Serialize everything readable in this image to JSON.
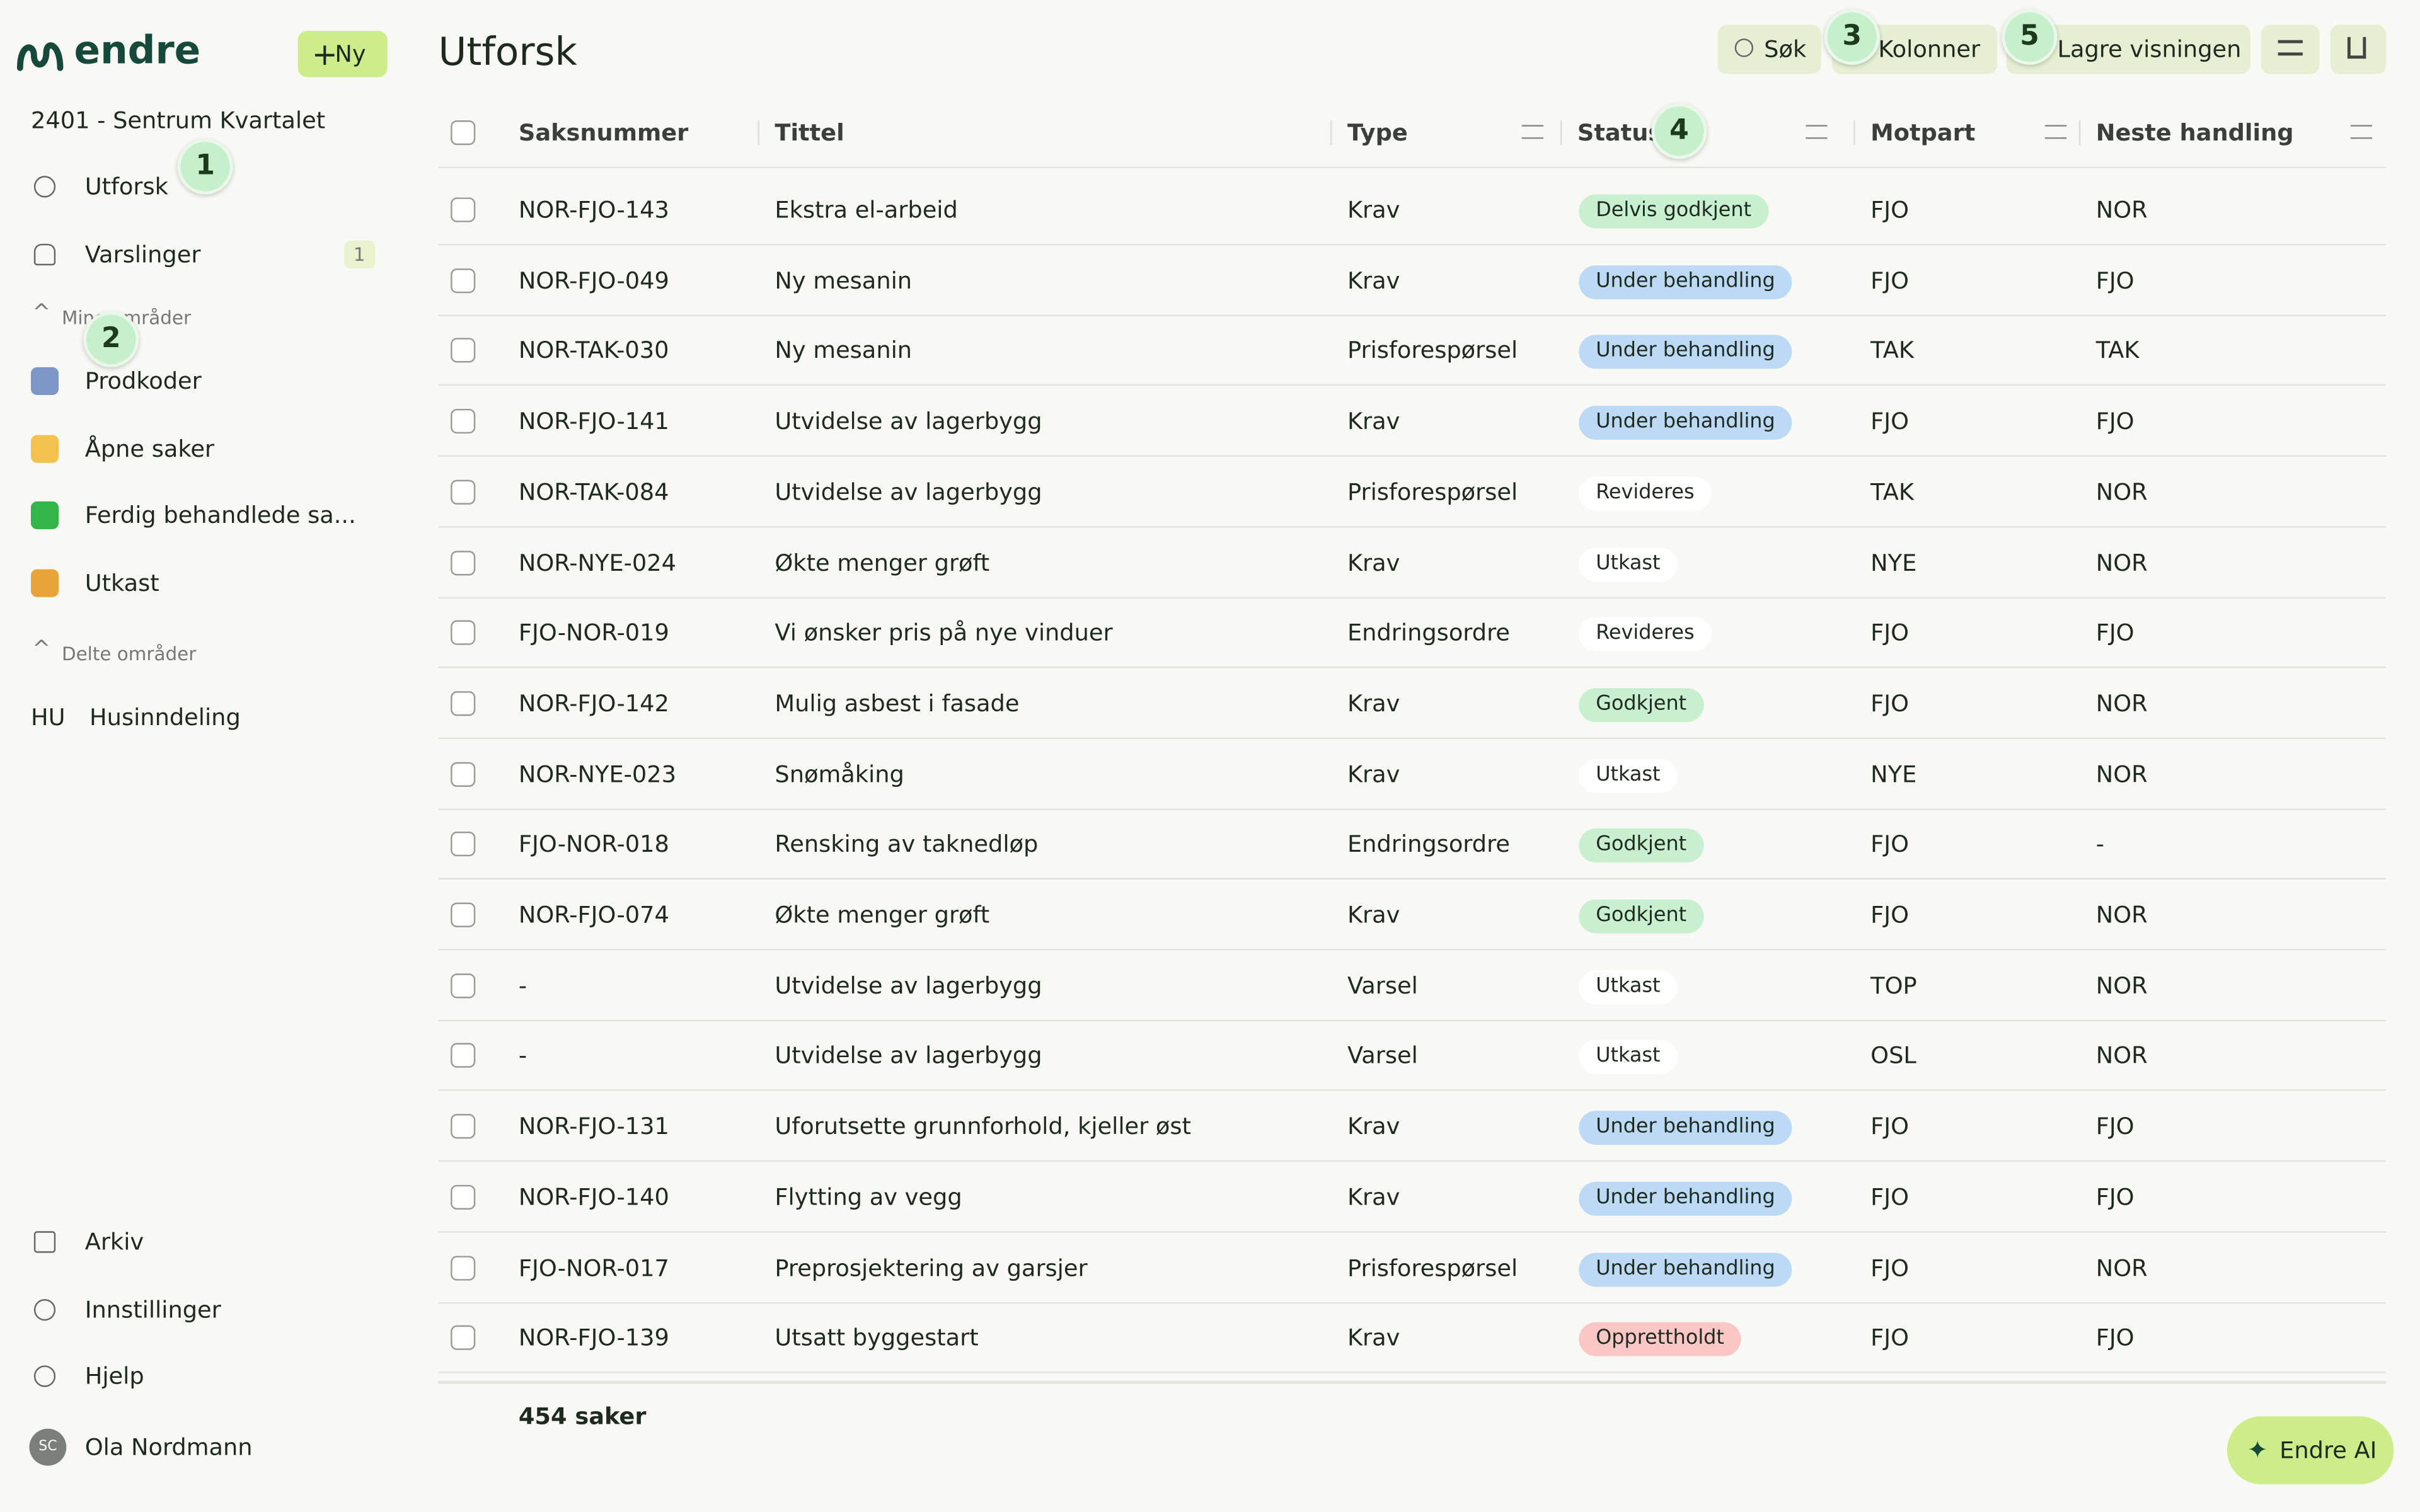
{
  "sidebar": {
    "logo": "endre",
    "new_button": "Ny",
    "project": "2401 - Sentrum Kvartalet",
    "nav": [
      {
        "label": "Utforsk"
      },
      {
        "label": "Varslinger",
        "badge": "1"
      }
    ],
    "my_areas": {
      "title": "Mine områder",
      "items": [
        "Prodkoder",
        "Åpne saker",
        "Ferdig behandlede sa...",
        "Utkast"
      ]
    },
    "shared_areas": {
      "title": "Delte områder",
      "items": [
        {
          "icon": "HU",
          "label": "Husinndeling"
        }
      ]
    },
    "bottom": [
      "Arkiv",
      "Innstillinger",
      "Hjelp"
    ],
    "user": {
      "initials": "SC",
      "name": "Ola Nordmann"
    }
  },
  "header": {
    "title": "Utforsk",
    "buttons": [
      "Søk",
      "Kolonner",
      "Lagre visningen"
    ]
  },
  "table": {
    "columns": [
      "Saksnummer",
      "Tittel",
      "Type",
      "Status",
      "Motpart",
      "Neste handling"
    ],
    "rows": [
      [
        "NOR-FJO-143",
        "Ekstra el-arbeid",
        "Krav",
        "Delvis godkjent",
        "FJO",
        "NOR"
      ],
      [
        "NOR-FJO-049",
        "Ny mesanin",
        "Krav",
        "Under behandling",
        "FJO",
        "FJO"
      ],
      [
        "NOR-TAK-030",
        "Ny mesanin",
        "Prisforespørsel",
        "Under behandling",
        "TAK",
        "TAK"
      ],
      [
        "NOR-FJO-141",
        "Utvidelse av lagerbygg",
        "Krav",
        "Under behandling",
        "FJO",
        "FJO"
      ],
      [
        "NOR-TAK-084",
        "Utvidelse av lagerbygg",
        "Prisforespørsel",
        "Revideres",
        "TAK",
        "NOR"
      ],
      [
        "NOR-NYE-024",
        "Økte menger grøft",
        "Krav",
        "Utkast",
        "NYE",
        "NOR"
      ],
      [
        "FJO-NOR-019",
        "Vi ønsker pris på nye vinduer",
        "Endringsordre",
        "Revideres",
        "FJO",
        "FJO"
      ],
      [
        "NOR-FJO-142",
        "Mulig asbest i fasade",
        "Krav",
        "Godkjent",
        "FJO",
        "NOR"
      ],
      [
        "NOR-NYE-023",
        "Snømåking",
        "Krav",
        "Utkast",
        "NYE",
        "NOR"
      ],
      [
        "FJO-NOR-018",
        "Rensking av taknedløp",
        "Endringsordre",
        "Godkjent",
        "FJO",
        "-"
      ],
      [
        "NOR-FJO-074",
        "Økte menger grøft",
        "Krav",
        "Godkjent",
        "FJO",
        "NOR"
      ],
      [
        "-",
        "Utvidelse av lagerbygg",
        "Varsel",
        "Utkast",
        "TOP",
        "NOR"
      ],
      [
        "-",
        "Utvidelse av lagerbygg",
        "Varsel",
        "Utkast",
        "OSL",
        "NOR"
      ],
      [
        "NOR-FJO-131",
        "Uforutsette grunnforhold, kjeller øst",
        "Krav",
        "Under behandling",
        "FJO",
        "FJO"
      ],
      [
        "NOR-FJO-140",
        "Flytting av vegg",
        "Krav",
        "Under behandling",
        "FJO",
        "FJO"
      ],
      [
        "FJO-NOR-017",
        "Preprosjektering av garsjer",
        "Prisforespørsel",
        "Under behandling",
        "FJO",
        "NOR"
      ],
      [
        "NOR-FJO-139",
        "Utsatt byggestart",
        "Krav",
        "Opprettholdt",
        "FJO",
        "FJO"
      ]
    ],
    "status_colors": [
      "#c8efcf",
      "#bcd9f6",
      "#bcd9f6",
      "#bcd9f6",
      "#ffffff",
      "#ffffff",
      "#ffffff",
      "#c8efcf",
      "#ffffff",
      "#c8efcf",
      "#c8efcf",
      "#ffffff",
      "#ffffff",
      "#bcd9f6",
      "#bcd9f6",
      "#bcd9f6",
      "#fbc6c6"
    ]
  },
  "footer": {
    "count": "454 saker"
  },
  "ai_button": "Endre AI",
  "annotations": [
    "1",
    "2",
    "3",
    "4",
    "5"
  ]
}
